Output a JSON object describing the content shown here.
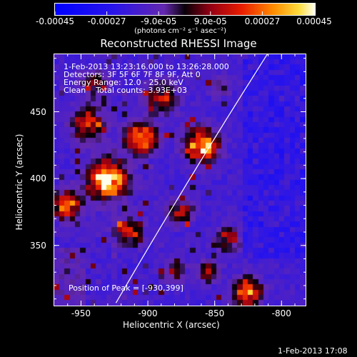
{
  "colorbar": {
    "ticks": [
      "-0.00045",
      "-0.00027",
      "-9.0e-05",
      "9.0e-05",
      "0.00027",
      "0.00045"
    ],
    "tick_values": [
      -0.00045,
      -0.00027,
      -9e-05,
      9e-05,
      0.00027,
      0.00045
    ],
    "range": [
      -0.00045,
      0.00045
    ],
    "units": "(photons cm⁻² s⁻¹ asec⁻²)"
  },
  "title": "Reconstructed RHESSI Image",
  "info": {
    "time": "1-Feb-2013 13:23:16.000 to 13:26:28.000",
    "detectors": "Detectors: 3F 5F 6F 7F 8F 9F, Att 0",
    "energy": "Energy Range: 12.0 - 25.0 keV",
    "clean": "Clean    Total counts: 3.93E+03"
  },
  "peak": "Position of Peak = [-930,399]",
  "x_axis": {
    "label": "Heliocentric X (arcsec)",
    "ticks": [
      "-950",
      "-900",
      "-850",
      "-800"
    ],
    "tick_values": [
      -950,
      -900,
      -850,
      -800
    ],
    "range": [
      -970,
      -782
    ]
  },
  "y_axis": {
    "label": "Heliocentric Y (arcsec)",
    "ticks": [
      "350",
      "400",
      "450"
    ],
    "tick_values": [
      350,
      400,
      450
    ],
    "range": [
      305,
      493
    ]
  },
  "timestamp": "1-Feb-2013 17:08",
  "colors": {
    "negative": "#1010ff",
    "background": "#000000",
    "positive_peak": "#ffffe0"
  }
}
